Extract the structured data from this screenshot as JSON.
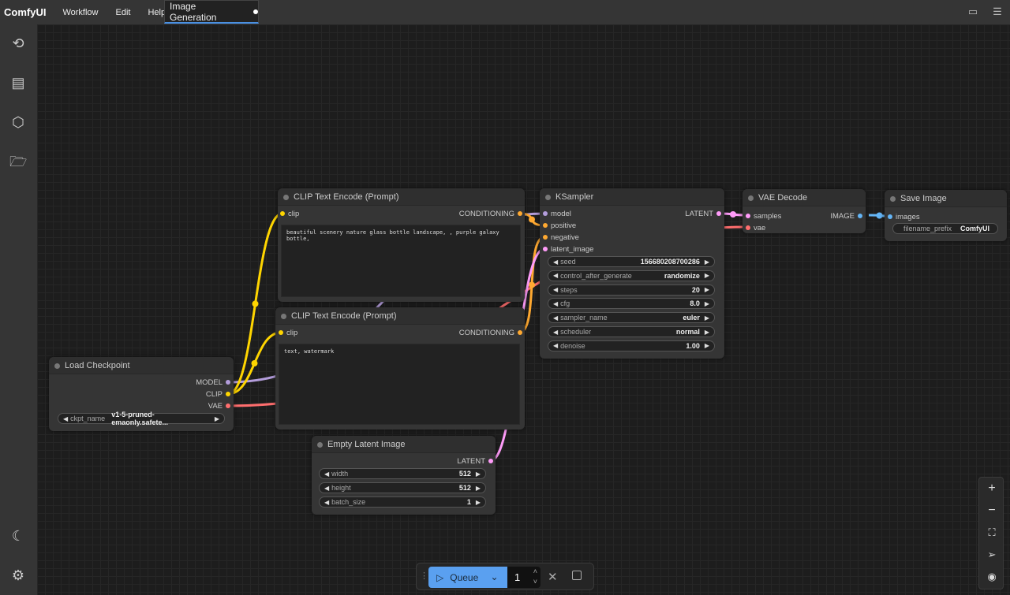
{
  "app": {
    "title": "ComfyUI",
    "menu": [
      "Workflow",
      "Edit",
      "Help"
    ],
    "tab": "Image Generation"
  },
  "sidebar": {
    "icons": [
      "history-icon",
      "library-icon",
      "model-cube-icon",
      "folder-open-icon",
      "theme-moon-icon",
      "settings-gear-icon"
    ]
  },
  "colors": {
    "model": "#b39ddb",
    "clip": "#ffd500",
    "vae": "#ff6e6e",
    "conditioning": "#ffa931",
    "latent": "#ff9cf9",
    "image": "#64b5f6",
    "accent": "#5aa0f0"
  },
  "nodes": {
    "clip1": {
      "title": "CLIP Text Encode (Prompt)",
      "input": "clip",
      "output": "CONDITIONING",
      "text": "beautiful scenery nature glass bottle landscape, , purple galaxy bottle,"
    },
    "clip2": {
      "title": "CLIP Text Encode (Prompt)",
      "input": "clip",
      "output": "CONDITIONING",
      "text": "text, watermark"
    },
    "checkpoint": {
      "title": "Load Checkpoint",
      "outputs": [
        "MODEL",
        "CLIP",
        "VAE"
      ],
      "widget": {
        "name": "ckpt_name",
        "value": "v1-5-pruned-emaonly.safete..."
      }
    },
    "latent": {
      "title": "Empty Latent Image",
      "output": "LATENT",
      "widgets": [
        {
          "name": "width",
          "value": "512"
        },
        {
          "name": "height",
          "value": "512"
        },
        {
          "name": "batch_size",
          "value": "1"
        }
      ]
    },
    "ksampler": {
      "title": "KSampler",
      "inputs": [
        "model",
        "positive",
        "negative",
        "latent_image"
      ],
      "output": "LATENT",
      "widgets": [
        {
          "name": "seed",
          "value": "156680208700286"
        },
        {
          "name": "control_after_generate",
          "value": "randomize"
        },
        {
          "name": "steps",
          "value": "20"
        },
        {
          "name": "cfg",
          "value": "8.0"
        },
        {
          "name": "sampler_name",
          "value": "euler"
        },
        {
          "name": "scheduler",
          "value": "normal"
        },
        {
          "name": "denoise",
          "value": "1.00"
        }
      ]
    },
    "vae": {
      "title": "VAE Decode",
      "inputs": [
        "samples",
        "vae"
      ],
      "output": "IMAGE"
    },
    "save": {
      "title": "Save Image",
      "input": "images",
      "widget": {
        "name": "filename_prefix",
        "value": "ComfyUI"
      }
    }
  },
  "queue": {
    "label": "Queue",
    "count": "1"
  }
}
